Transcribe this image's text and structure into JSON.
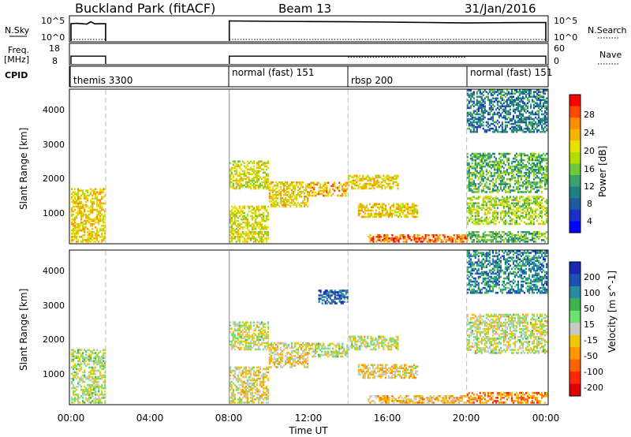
{
  "header": {
    "station": "Buckland Park (fitACF)",
    "beam": "Beam 13",
    "date": "31/Jan/2016"
  },
  "panels": {
    "nsky": {
      "left_label": "N.Sky",
      "tick_top": "10^5",
      "tick_bottom": "10^0",
      "right_label": "N.Search"
    },
    "freq": {
      "left_label": "Freq.",
      "left_unit": "[MHz]",
      "tick_top": "18",
      "tick_bottom": "8",
      "right_tick_top": "60",
      "right_tick_bottom": "0",
      "right_label": "Nave"
    },
    "cpid": {
      "label": "CPID",
      "modes": [
        "themis 3300",
        "normal (fast) 151",
        "rbsp 200",
        "normal (fast) 151"
      ]
    }
  },
  "colorbars": {
    "power": {
      "title": "Power [dB]",
      "ticks": [
        "28",
        "24",
        "20",
        "16",
        "12",
        "8",
        "4"
      ],
      "colors": [
        "#ff0000",
        "#ff4a00",
        "#ff8c00",
        "#f5b400",
        "#e8e000",
        "#b4dc00",
        "#6ec83c",
        "#3aa26a",
        "#1e8080",
        "#1f5aa0",
        "#1a2ec8",
        "#0000ff"
      ]
    },
    "velocity": {
      "title": "Velocity [m s^-1]",
      "ticks": [
        "200",
        "100",
        "50",
        "15",
        "-15",
        "-50",
        "-100",
        "-200"
      ],
      "colors": [
        "#1a2ab4",
        "#1e50b4",
        "#2a8ca0",
        "#3cb450",
        "#6ee06e",
        "#c8c8c8",
        "#f0c800",
        "#ff9600",
        "#ff6400",
        "#ff2800",
        "#e10000"
      ]
    }
  },
  "axes": {
    "ylabel": "Slant Range [km]",
    "yticks": [
      "4000",
      "3000",
      "2000",
      "1000"
    ],
    "xlabel": "Time UT",
    "xticks": [
      "00:00",
      "04:00",
      "08:00",
      "12:00",
      "16:00",
      "20:00",
      "00:00"
    ]
  },
  "chart_data": [
    {
      "type": "line",
      "title": "N.Sky / N.Search",
      "xlabel": "Time UT",
      "log_scale": true,
      "segments": [
        {
          "x_hours": [
            0.0,
            0.3,
            0.8,
            1.0,
            1.2,
            1.75
          ],
          "value": [
            10000,
            12000,
            8000,
            30000,
            9000,
            10000
          ]
        },
        {
          "x_hours": [
            8.0,
            10,
            12,
            14,
            16,
            18,
            20,
            22,
            24
          ],
          "value": [
            50000,
            40000,
            35000,
            30000,
            25000,
            20000,
            15000,
            18000,
            20000
          ]
        }
      ]
    },
    {
      "type": "line",
      "title": "Freq. / Nave",
      "ylabel": "[MHz]",
      "segments": [
        {
          "x_hours": [
            0.0,
            1.75
          ],
          "freq_mhz": [
            12,
            12
          ]
        },
        {
          "x_hours": [
            8.0,
            20.0,
            24.0
          ],
          "freq_mhz": [
            12,
            12,
            12
          ]
        }
      ],
      "nave_segments": [
        {
          "x_hours": [
            14.0,
            20.0
          ],
          "nave": [
            20,
            20
          ]
        }
      ]
    },
    {
      "type": "heatmap",
      "name": "power",
      "z_label": "Power [dB]",
      "zlim": [
        0,
        30
      ],
      "ylim": [
        180,
        4500
      ],
      "xlim": [
        0,
        24
      ],
      "regions": [
        {
          "x": [
            0.0,
            1.75
          ],
          "y": [
            200,
            1700
          ],
          "z": 20
        },
        {
          "x": [
            8.0,
            10.0
          ],
          "y": [
            200,
            1200
          ],
          "z": 18
        },
        {
          "x": [
            8.0,
            10.0
          ],
          "y": [
            1700,
            2500
          ],
          "z": 18
        },
        {
          "x": [
            10.0,
            12.0
          ],
          "y": [
            1200,
            1900
          ],
          "z": 20
        },
        {
          "x": [
            12.0,
            14.0
          ],
          "y": [
            1500,
            1900
          ],
          "z": 22
        },
        {
          "x": [
            14.0,
            16.5
          ],
          "y": [
            1700,
            2100
          ],
          "z": 20
        },
        {
          "x": [
            14.5,
            17.5
          ],
          "y": [
            900,
            1300
          ],
          "z": 20
        },
        {
          "x": [
            15.0,
            20.0
          ],
          "y": [
            200,
            400
          ],
          "z": 26
        },
        {
          "x": [
            20.0,
            24.0
          ],
          "y": [
            200,
            500
          ],
          "z": 12
        },
        {
          "x": [
            20.0,
            24.0
          ],
          "y": [
            1600,
            2700
          ],
          "z": 12
        },
        {
          "x": [
            20.0,
            24.0
          ],
          "y": [
            700,
            1500
          ],
          "z": 16
        },
        {
          "x": [
            20.0,
            24.0
          ],
          "y": [
            3300,
            4500
          ],
          "z": 8
        }
      ]
    },
    {
      "type": "heatmap",
      "name": "velocity",
      "z_label": "Velocity [m s^-1]",
      "zlim": [
        -250,
        250
      ],
      "ylim": [
        180,
        4500
      ],
      "xlim": [
        0,
        24
      ],
      "regions": [
        {
          "x": [
            0.0,
            1.75
          ],
          "y": [
            200,
            1700
          ],
          "v": 10
        },
        {
          "x": [
            8.0,
            10.0
          ],
          "y": [
            200,
            1200
          ],
          "v": -20
        },
        {
          "x": [
            8.0,
            10.0
          ],
          "y": [
            1700,
            2500
          ],
          "v": 0
        },
        {
          "x": [
            10.0,
            12.0
          ],
          "y": [
            1200,
            1900
          ],
          "v": -30
        },
        {
          "x": [
            12.0,
            14.0
          ],
          "y": [
            1500,
            1900
          ],
          "v": 0
        },
        {
          "x": [
            12.5,
            14.0
          ],
          "y": [
            3000,
            3400
          ],
          "v": 200
        },
        {
          "x": [
            14.0,
            16.5
          ],
          "y": [
            1700,
            2100
          ],
          "v": 0
        },
        {
          "x": [
            14.5,
            17.5
          ],
          "y": [
            900,
            1300
          ],
          "v": -40
        },
        {
          "x": [
            15.0,
            20.0
          ],
          "y": [
            200,
            400
          ],
          "v": -60
        },
        {
          "x": [
            20.0,
            24.0
          ],
          "y": [
            200,
            500
          ],
          "v": -120
        },
        {
          "x": [
            20.0,
            24.0
          ],
          "y": [
            1600,
            2700
          ],
          "v": 0
        },
        {
          "x": [
            20.0,
            24.0
          ],
          "y": [
            3300,
            4500
          ],
          "v": 150
        }
      ]
    }
  ]
}
